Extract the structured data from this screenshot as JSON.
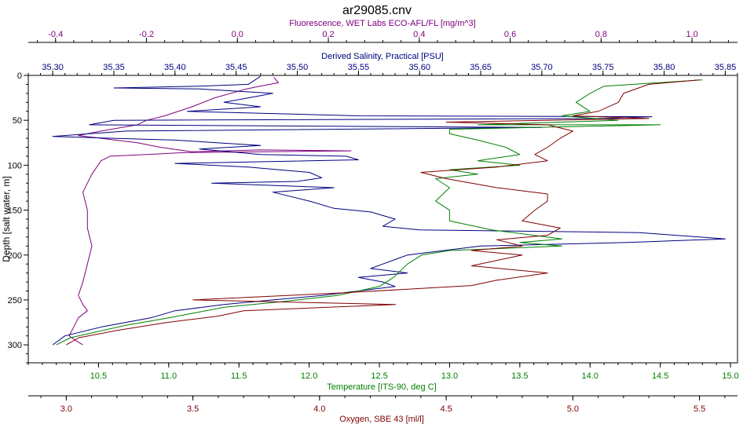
{
  "chart_data": {
    "type": "line",
    "title": "ar29085.cnv",
    "y_axis": {
      "label": "Depth [salt water, m]",
      "range": [
        0,
        320
      ],
      "ticks": [
        0,
        50,
        100,
        150,
        200,
        250,
        300
      ],
      "inverted": true
    },
    "grid": false,
    "legend": "none",
    "axes": {
      "fluorescence": {
        "label": "Fluorescence, WET Labs ECO-AFL/FL [mg/m^3]",
        "position": "top-outer",
        "color": "#800080",
        "range": [
          -0.46,
          1.1
        ],
        "ticks": [
          -0.4,
          -0.2,
          0.0,
          0.2,
          0.4,
          0.6,
          0.8,
          1.0
        ],
        "tick_labels": [
          "-0.4",
          "-0.2",
          "0.0",
          "0.2",
          "0.4",
          "0.6",
          "0.8",
          "1.0"
        ]
      },
      "salinity": {
        "label": "Derived Salinity, Practical [PSU]",
        "position": "top-inner",
        "color": "#000080",
        "range": [
          35.28,
          35.86
        ],
        "ticks": [
          35.3,
          35.35,
          35.4,
          35.45,
          35.5,
          35.55,
          35.6,
          35.65,
          35.7,
          35.75,
          35.8,
          35.85
        ],
        "tick_labels": [
          "35.30",
          "35.35",
          "35.40",
          "35.45",
          "35.50",
          "35.55",
          "35.60",
          "35.65",
          "35.70",
          "35.75",
          "35.80",
          "35.85"
        ]
      },
      "temperature": {
        "label": "Temperature [ITS-90, deg C]",
        "position": "bottom-inner",
        "color": "#008000",
        "range": [
          10.0,
          15.05
        ],
        "ticks": [
          10.5,
          11.0,
          11.5,
          12.0,
          12.5,
          13.0,
          13.5,
          14.0,
          14.5,
          15.0
        ],
        "tick_labels": [
          "10.5",
          "11.0",
          "11.5",
          "12.0",
          "12.5",
          "13.0",
          "13.5",
          "14.0",
          "14.5",
          "15.0"
        ]
      },
      "oxygen": {
        "label": "Oxygen, SBE 43 [ml/l]",
        "position": "bottom-outer",
        "color": "#800000",
        "range": [
          2.85,
          5.65
        ],
        "ticks": [
          3.0,
          3.5,
          4.0,
          4.5,
          5.0,
          5.5
        ],
        "tick_labels": [
          "3.0",
          "3.5",
          "4.0",
          "4.5",
          "5.0",
          "5.5"
        ]
      }
    },
    "series": [
      {
        "axis": "fluorescence",
        "color": "#800080",
        "points": [
          [
            0.08,
            2
          ],
          [
            0.09,
            8
          ],
          [
            0.05,
            12
          ],
          [
            0.02,
            15
          ],
          [
            -0.05,
            25
          ],
          [
            -0.1,
            35
          ],
          [
            -0.16,
            45
          ],
          [
            -0.2,
            50
          ],
          [
            -0.22,
            55
          ],
          [
            -0.3,
            62
          ],
          [
            -0.35,
            67
          ],
          [
            -0.3,
            70
          ],
          [
            -0.22,
            75
          ],
          [
            -0.17,
            80
          ],
          [
            -0.1,
            85
          ],
          [
            0.05,
            83
          ],
          [
            0.25,
            84
          ],
          [
            -0.12,
            86
          ],
          [
            -0.2,
            88
          ],
          [
            -0.28,
            90
          ],
          [
            -0.3,
            95
          ],
          [
            -0.32,
            110
          ],
          [
            -0.34,
            130
          ],
          [
            -0.33,
            150
          ],
          [
            -0.33,
            170
          ],
          [
            -0.32,
            190
          ],
          [
            -0.33,
            210
          ],
          [
            -0.34,
            230
          ],
          [
            -0.35,
            245
          ],
          [
            -0.34,
            255
          ],
          [
            -0.33,
            262
          ],
          [
            -0.35,
            270
          ],
          [
            -0.36,
            280
          ],
          [
            -0.37,
            290
          ],
          [
            -0.35,
            297
          ],
          [
            -0.34,
            300
          ]
        ]
      },
      {
        "axis": "salinity",
        "color": "#000080",
        "points": [
          [
            35.47,
            1
          ],
          [
            35.46,
            10
          ],
          [
            35.42,
            12
          ],
          [
            35.35,
            14
          ],
          [
            35.42,
            15
          ],
          [
            35.48,
            20
          ],
          [
            35.46,
            25
          ],
          [
            35.44,
            30
          ],
          [
            35.47,
            35
          ],
          [
            35.41,
            40
          ],
          [
            35.55,
            45
          ],
          [
            35.79,
            46
          ],
          [
            35.75,
            48
          ],
          [
            35.35,
            50
          ],
          [
            35.33,
            55
          ],
          [
            35.7,
            58
          ],
          [
            35.36,
            62
          ],
          [
            35.33,
            65
          ],
          [
            35.3,
            68
          ],
          [
            35.4,
            72
          ],
          [
            35.47,
            78
          ],
          [
            35.42,
            82
          ],
          [
            35.47,
            88
          ],
          [
            35.54,
            90
          ],
          [
            35.55,
            94
          ],
          [
            35.4,
            98
          ],
          [
            35.46,
            102
          ],
          [
            35.51,
            108
          ],
          [
            35.52,
            114
          ],
          [
            35.5,
            118
          ],
          [
            35.43,
            120
          ],
          [
            35.53,
            125
          ],
          [
            35.48,
            130
          ],
          [
            35.51,
            140
          ],
          [
            35.53,
            148
          ],
          [
            35.56,
            152
          ],
          [
            35.58,
            160
          ],
          [
            35.57,
            168
          ],
          [
            35.6,
            172
          ],
          [
            35.78,
            175
          ],
          [
            35.85,
            182
          ],
          [
            35.77,
            186
          ],
          [
            35.65,
            190
          ],
          [
            35.62,
            195
          ],
          [
            35.59,
            200
          ],
          [
            35.57,
            210
          ],
          [
            35.56,
            215
          ],
          [
            35.59,
            220
          ],
          [
            35.55,
            225
          ],
          [
            35.57,
            230
          ],
          [
            35.58,
            235
          ],
          [
            35.55,
            240
          ],
          [
            35.52,
            245
          ],
          [
            35.48,
            250
          ],
          [
            35.44,
            255
          ],
          [
            35.4,
            262
          ],
          [
            35.38,
            270
          ],
          [
            35.34,
            280
          ],
          [
            35.31,
            290
          ],
          [
            35.3,
            300
          ]
        ]
      },
      {
        "axis": "temperature",
        "color": "#008000",
        "points": [
          [
            14.8,
            5
          ],
          [
            14.1,
            12
          ],
          [
            14.0,
            20
          ],
          [
            13.9,
            30
          ],
          [
            14.0,
            40
          ],
          [
            13.8,
            45
          ],
          [
            14.2,
            50
          ],
          [
            13.2,
            55
          ],
          [
            14.5,
            55
          ],
          [
            13.0,
            60
          ],
          [
            13.0,
            65
          ],
          [
            13.2,
            72
          ],
          [
            13.4,
            80
          ],
          [
            13.5,
            88
          ],
          [
            13.2,
            95
          ],
          [
            13.5,
            100
          ],
          [
            13.0,
            105
          ],
          [
            13.2,
            110
          ],
          [
            12.9,
            115
          ],
          [
            13.0,
            125
          ],
          [
            12.9,
            140
          ],
          [
            13.0,
            150
          ],
          [
            13.0,
            162
          ],
          [
            13.3,
            172
          ],
          [
            13.6,
            178
          ],
          [
            13.8,
            182
          ],
          [
            13.5,
            186
          ],
          [
            13.8,
            190
          ],
          [
            13.0,
            195
          ],
          [
            12.8,
            200
          ],
          [
            12.7,
            210
          ],
          [
            12.6,
            225
          ],
          [
            12.5,
            235
          ],
          [
            12.2,
            245
          ],
          [
            11.8,
            252
          ],
          [
            11.4,
            258
          ],
          [
            11.2,
            264
          ],
          [
            11.0,
            270
          ],
          [
            10.7,
            278
          ],
          [
            10.5,
            285
          ],
          [
            10.3,
            292
          ],
          [
            10.2,
            300
          ]
        ]
      },
      {
        "axis": "oxygen",
        "color": "#800000",
        "points": [
          [
            5.5,
            5
          ],
          [
            5.3,
            10
          ],
          [
            5.2,
            20
          ],
          [
            5.18,
            30
          ],
          [
            5.1,
            40
          ],
          [
            5.0,
            45
          ],
          [
            5.3,
            48
          ],
          [
            4.5,
            52
          ],
          [
            4.9,
            55
          ],
          [
            5.0,
            62
          ],
          [
            4.95,
            70
          ],
          [
            4.9,
            80
          ],
          [
            4.85,
            88
          ],
          [
            4.9,
            95
          ],
          [
            4.7,
            102
          ],
          [
            4.4,
            108
          ],
          [
            4.5,
            115
          ],
          [
            4.6,
            120
          ],
          [
            4.7,
            125
          ],
          [
            4.9,
            132
          ],
          [
            4.9,
            140
          ],
          [
            4.85,
            150
          ],
          [
            4.8,
            162
          ],
          [
            4.95,
            170
          ],
          [
            4.9,
            178
          ],
          [
            4.7,
            183
          ],
          [
            4.8,
            190
          ],
          [
            4.6,
            195
          ],
          [
            4.8,
            200
          ],
          [
            4.7,
            206
          ],
          [
            4.6,
            212
          ],
          [
            4.9,
            220
          ],
          [
            4.7,
            228
          ],
          [
            4.6,
            234
          ],
          [
            4.1,
            242
          ],
          [
            3.5,
            250
          ],
          [
            4.3,
            255
          ],
          [
            3.7,
            262
          ],
          [
            3.6,
            268
          ],
          [
            3.4,
            275
          ],
          [
            3.2,
            284
          ],
          [
            3.05,
            292
          ],
          [
            3.0,
            300
          ]
        ]
      }
    ]
  }
}
